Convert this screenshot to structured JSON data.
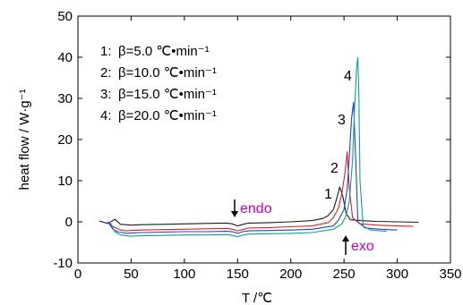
{
  "chart_data": {
    "type": "line",
    "xlabel": "T /℃",
    "ylabel": "heat flow / W·g⁻¹",
    "xlim": [
      0,
      350
    ],
    "ylim": [
      -10,
      50
    ],
    "x_ticks": [
      "0",
      "50",
      "100",
      "150",
      "200",
      "250",
      "300",
      "350"
    ],
    "y_ticks": [
      "-10",
      "0",
      "10",
      "20",
      "30",
      "40",
      "50"
    ],
    "x_tick_values": [
      0,
      50,
      100,
      150,
      200,
      250,
      300,
      350
    ],
    "y_tick_values": [
      -10,
      0,
      10,
      20,
      30,
      40,
      50
    ],
    "grid": false,
    "legend_placement": "top-left",
    "legend": [
      {
        "index": "1:",
        "text": "β=5.0 ℃•min⁻¹"
      },
      {
        "index": "2:",
        "text": "β=10.0 ℃•min⁻¹"
      },
      {
        "index": "3:",
        "text": "β=15.0 ℃•min⁻¹"
      },
      {
        "index": "4:",
        "text": "β=20.0 ℃•min⁻¹"
      }
    ],
    "annotations": {
      "endo": "endo",
      "exo": "exo"
    },
    "series": [
      {
        "label": "1",
        "color": "#1a1a1a",
        "x": [
          20,
          28,
          35,
          40,
          45,
          50,
          60,
          80,
          100,
          120,
          140,
          145,
          150,
          155,
          160,
          180,
          200,
          220,
          230,
          235,
          240,
          243,
          246,
          249,
          252,
          256,
          265,
          280,
          300,
          320
        ],
        "y": [
          0.2,
          -0.4,
          0.6,
          -0.6,
          -0.7,
          -0.8,
          -0.7,
          -0.6,
          -0.5,
          -0.4,
          -0.3,
          -0.5,
          -1.0,
          -0.6,
          -0.3,
          -0.2,
          0.0,
          0.3,
          0.8,
          1.5,
          3.0,
          5.5,
          8.5,
          6.0,
          2.0,
          0.5,
          0.3,
          0.1,
          0.0,
          -0.1
        ]
      },
      {
        "label": "2",
        "color": "#e02020",
        "x": [
          28,
          32,
          36,
          40,
          45,
          50,
          60,
          80,
          100,
          120,
          140,
          145,
          150,
          155,
          160,
          180,
          200,
          220,
          235,
          240,
          245,
          248,
          251,
          253,
          255,
          258,
          265,
          280,
          300,
          315
        ],
        "y": [
          0.0,
          -1.0,
          -1.5,
          -2.0,
          -2.2,
          -2.1,
          -2.0,
          -1.9,
          -1.8,
          -1.7,
          -1.6,
          -1.8,
          -2.2,
          -1.9,
          -1.5,
          -1.4,
          -1.2,
          -1.0,
          -0.2,
          1.0,
          3.5,
          7.0,
          12.0,
          17.0,
          8.0,
          1.0,
          -0.5,
          -0.8,
          -1.0,
          -1.1
        ]
      },
      {
        "label": "3",
        "color": "#2040e0",
        "x": [
          28,
          33,
          38,
          42,
          46,
          50,
          60,
          80,
          100,
          120,
          140,
          145,
          150,
          155,
          160,
          180,
          200,
          220,
          240,
          245,
          250,
          253,
          255,
          257,
          259,
          261,
          263,
          270,
          285,
          300
        ],
        "y": [
          0.0,
          -1.8,
          -2.5,
          -2.6,
          -2.8,
          -2.7,
          -2.6,
          -2.5,
          -2.4,
          -2.4,
          -2.3,
          -2.4,
          -2.8,
          -2.4,
          -2.2,
          -2.1,
          -2.0,
          -1.8,
          -1.0,
          0.5,
          3.0,
          8.0,
          16.0,
          25.0,
          29.0,
          15.0,
          0.0,
          -1.5,
          -1.8,
          -2.0
        ]
      },
      {
        "label": "4",
        "color": "#10a090",
        "x": [
          30,
          35,
          40,
          45,
          50,
          60,
          80,
          100,
          120,
          140,
          145,
          150,
          155,
          160,
          180,
          200,
          220,
          240,
          248,
          252,
          255,
          258,
          260,
          262,
          263,
          264,
          265,
          268,
          275,
          290
        ],
        "y": [
          0.0,
          -2.5,
          -3.2,
          -3.4,
          -3.5,
          -3.4,
          -3.3,
          -3.2,
          -3.2,
          -3.1,
          -3.3,
          -3.6,
          -3.2,
          -3.0,
          -2.9,
          -2.8,
          -2.6,
          -1.8,
          -0.5,
          1.5,
          5.0,
          15.0,
          28.0,
          38.0,
          40.0,
          30.0,
          10.0,
          -1.0,
          -2.0,
          -2.3
        ]
      }
    ]
  }
}
